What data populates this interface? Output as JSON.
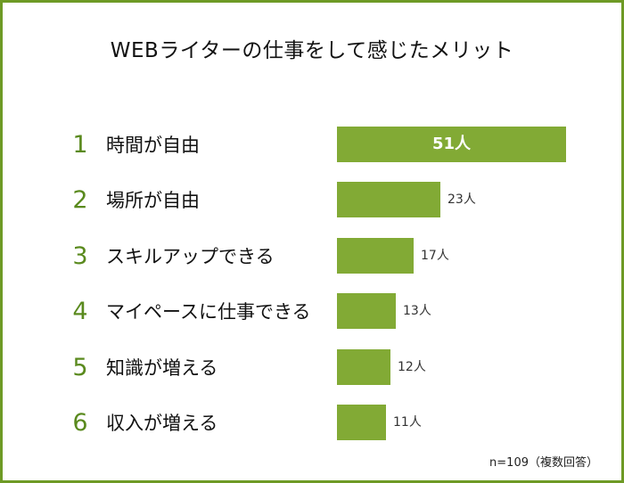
{
  "chart_data": {
    "type": "bar",
    "orientation": "horizontal",
    "title": "WEBライターの仕事をして感じたメリット",
    "categories": [
      "時間が自由",
      "場所が自由",
      "スキルアップできる",
      "マイペースに仕事できる",
      "知識が増える",
      "収入が増える"
    ],
    "ranks": [
      "1",
      "2",
      "3",
      "4",
      "5",
      "6"
    ],
    "values": [
      51,
      23,
      17,
      13,
      12,
      11
    ],
    "value_labels": [
      "51人",
      "23人",
      "17人",
      "13人",
      "12人",
      "11人"
    ],
    "unit": "人",
    "xlim": [
      0,
      51
    ],
    "bar_color": "#82aa35",
    "rank_color": "#5a8a1e",
    "border_color": "#6e9a25",
    "note": "n=109（複数回答）"
  }
}
